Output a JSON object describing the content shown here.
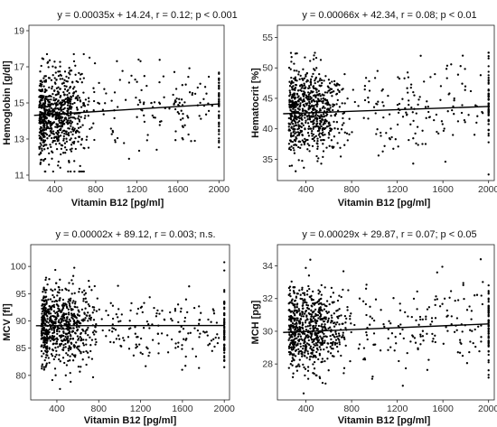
{
  "chart_data": [
    {
      "type": "scatter",
      "id": "hemoglobin",
      "title": "y = 0.00035x + 14.24, r = 0.12; p < 0.001",
      "xlabel": "Vitamin B12 [pg/ml]",
      "ylabel": "Hemoglobin [g/dl]",
      "xlim": [
        150,
        2050
      ],
      "ylim": [
        10.7,
        19.3
      ],
      "xticks": [
        400,
        800,
        1200,
        1600,
        2000
      ],
      "xtick_labels": [
        "400",
        "800",
        "1200",
        "1600",
        "2000"
      ],
      "yticks": [
        11,
        13,
        15,
        17,
        19
      ],
      "ytick_labels": [
        "11",
        "13",
        "15",
        "17",
        "19"
      ],
      "regression": {
        "slope": 0.00035,
        "intercept": 14.24
      },
      "points_summary": {
        "n": 900,
        "x_bulk": [
          250,
          1000
        ],
        "y_center": 14.4,
        "y_sd": 1.25,
        "y_min": 11.2,
        "y_max": 17.7
      }
    },
    {
      "type": "scatter",
      "id": "hematocrit",
      "title": "y = 0.00066x + 42.34, r = 0.08; p < 0.01",
      "xlabel": "Vitamin B12 [pg/ml]",
      "ylabel": "Hematocrit [%]",
      "xlim": [
        150,
        2050
      ],
      "ylim": [
        31.5,
        57
      ],
      "xticks": [
        400,
        800,
        1200,
        1600,
        2000
      ],
      "xtick_labels": [
        "400",
        "800",
        "1200",
        "1600",
        "2000"
      ],
      "yticks": [
        35,
        40,
        45,
        50,
        55
      ],
      "ytick_labels": [
        "35",
        "40",
        "45",
        "50",
        "55"
      ],
      "regression": {
        "slope": 0.00066,
        "intercept": 42.34
      },
      "points_summary": {
        "n": 900,
        "x_bulk": [
          250,
          1000
        ],
        "y_center": 42.8,
        "y_sd": 3.6,
        "y_min": 32.5,
        "y_max": 52.5
      }
    },
    {
      "type": "scatter",
      "id": "mcv",
      "title": "y = 0.00002x + 89.12, r = 0.003; n.s.",
      "xlabel": "Vitamin B12 [pg/ml]",
      "ylabel": "MCV [fl]",
      "xlim": [
        150,
        2050
      ],
      "ylim": [
        75.5,
        104
      ],
      "xticks": [
        400,
        800,
        1200,
        1600,
        2000
      ],
      "xtick_labels": [
        "400",
        "800",
        "1200",
        "1600",
        "2000"
      ],
      "yticks": [
        80,
        85,
        90,
        95,
        100
      ],
      "ytick_labels": [
        "80",
        "85",
        "90",
        "95",
        "100"
      ],
      "regression": {
        "slope": 2e-05,
        "intercept": 89.12
      },
      "points_summary": {
        "n": 900,
        "x_bulk": [
          250,
          1000
        ],
        "y_center": 89.0,
        "y_sd": 3.6,
        "y_min": 77.5,
        "y_max": 101.5
      }
    },
    {
      "type": "scatter",
      "id": "mch",
      "title": "y = 0.00029x + 29.87, r = 0.07; p < 0.05",
      "xlabel": "Vitamin B12 [pg/ml]",
      "ylabel": "MCH [pg]",
      "xlim": [
        150,
        2050
      ],
      "ylim": [
        25.8,
        35.3
      ],
      "xticks": [
        400,
        800,
        1200,
        1600,
        2000
      ],
      "xtick_labels": [
        "400",
        "800",
        "1200",
        "1600",
        "2000"
      ],
      "yticks": [
        28,
        30,
        32,
        34
      ],
      "ytick_labels": [
        "28",
        "30",
        "32",
        "34"
      ],
      "regression": {
        "slope": 0.00029,
        "intercept": 29.87
      },
      "points_summary": {
        "n": 900,
        "x_bulk": [
          250,
          1000
        ],
        "y_center": 30.1,
        "y_sd": 1.25,
        "y_min": 26.2,
        "y_max": 34.6
      }
    }
  ],
  "colors": {
    "points": "#000000",
    "line": "#000000",
    "frame": "#222222",
    "background": "#ffffff"
  }
}
